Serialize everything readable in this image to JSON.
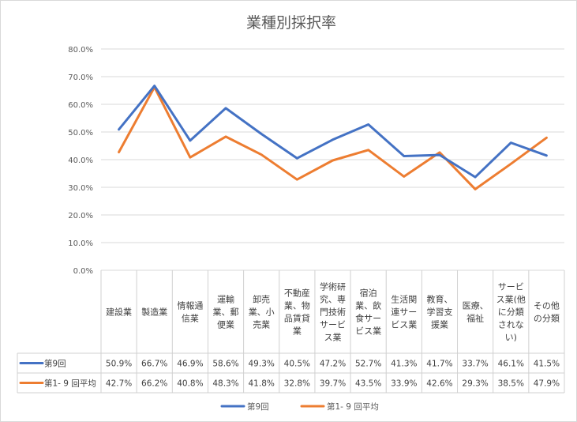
{
  "chart_data": {
    "type": "line",
    "title": "業種別採択率",
    "categories": [
      [
        "建設業"
      ],
      [
        "製造業"
      ],
      [
        "情報通",
        "信業"
      ],
      [
        "運輸",
        "業、郵",
        "便業"
      ],
      [
        "卸売",
        "業、小",
        "売業"
      ],
      [
        "不動産",
        "業、物",
        "品賃貸",
        "業"
      ],
      [
        "学術研",
        "究、専",
        "門技術",
        "サービ",
        "ス業"
      ],
      [
        "宿泊",
        "業、飲",
        "食サー",
        "ビス業"
      ],
      [
        "生活関",
        "連サー",
        "ビス業"
      ],
      [
        "教育、",
        "学習支",
        "援業"
      ],
      [
        "医療、",
        "福祉"
      ],
      [
        "サービ",
        "ス業(他",
        "に分類",
        "されな",
        "い)"
      ],
      [
        "その他",
        "の分類"
      ]
    ],
    "series": [
      {
        "name": "第9回",
        "color": "#4472c4",
        "values": [
          50.9,
          66.7,
          46.9,
          58.6,
          49.3,
          40.5,
          47.2,
          52.7,
          41.3,
          41.7,
          33.7,
          46.1,
          41.5
        ],
        "labels": [
          "50.9%",
          "66.7%",
          "46.9%",
          "58.6%",
          "49.3%",
          "40.5%",
          "47.2%",
          "52.7%",
          "41.3%",
          "41.7%",
          "33.7%",
          "46.1%",
          "41.5%"
        ]
      },
      {
        "name": "第1- 9 回平均",
        "color": "#ed7d31",
        "values": [
          42.7,
          66.2,
          40.8,
          48.3,
          41.8,
          32.8,
          39.7,
          43.5,
          33.9,
          42.6,
          29.3,
          38.5,
          47.9
        ],
        "labels": [
          "42.7%",
          "66.2%",
          "40.8%",
          "48.3%",
          "41.8%",
          "32.8%",
          "39.7%",
          "43.5%",
          "33.9%",
          "42.6%",
          "29.3%",
          "38.5%",
          "47.9%"
        ]
      }
    ],
    "ylim": [
      0,
      80
    ],
    "yticks": [
      "0.0%",
      "10.0%",
      "20.0%",
      "30.0%",
      "40.0%",
      "50.0%",
      "60.0%",
      "70.0%",
      "80.0%"
    ],
    "grid": true,
    "legend": "bottom",
    "data_table": true
  }
}
